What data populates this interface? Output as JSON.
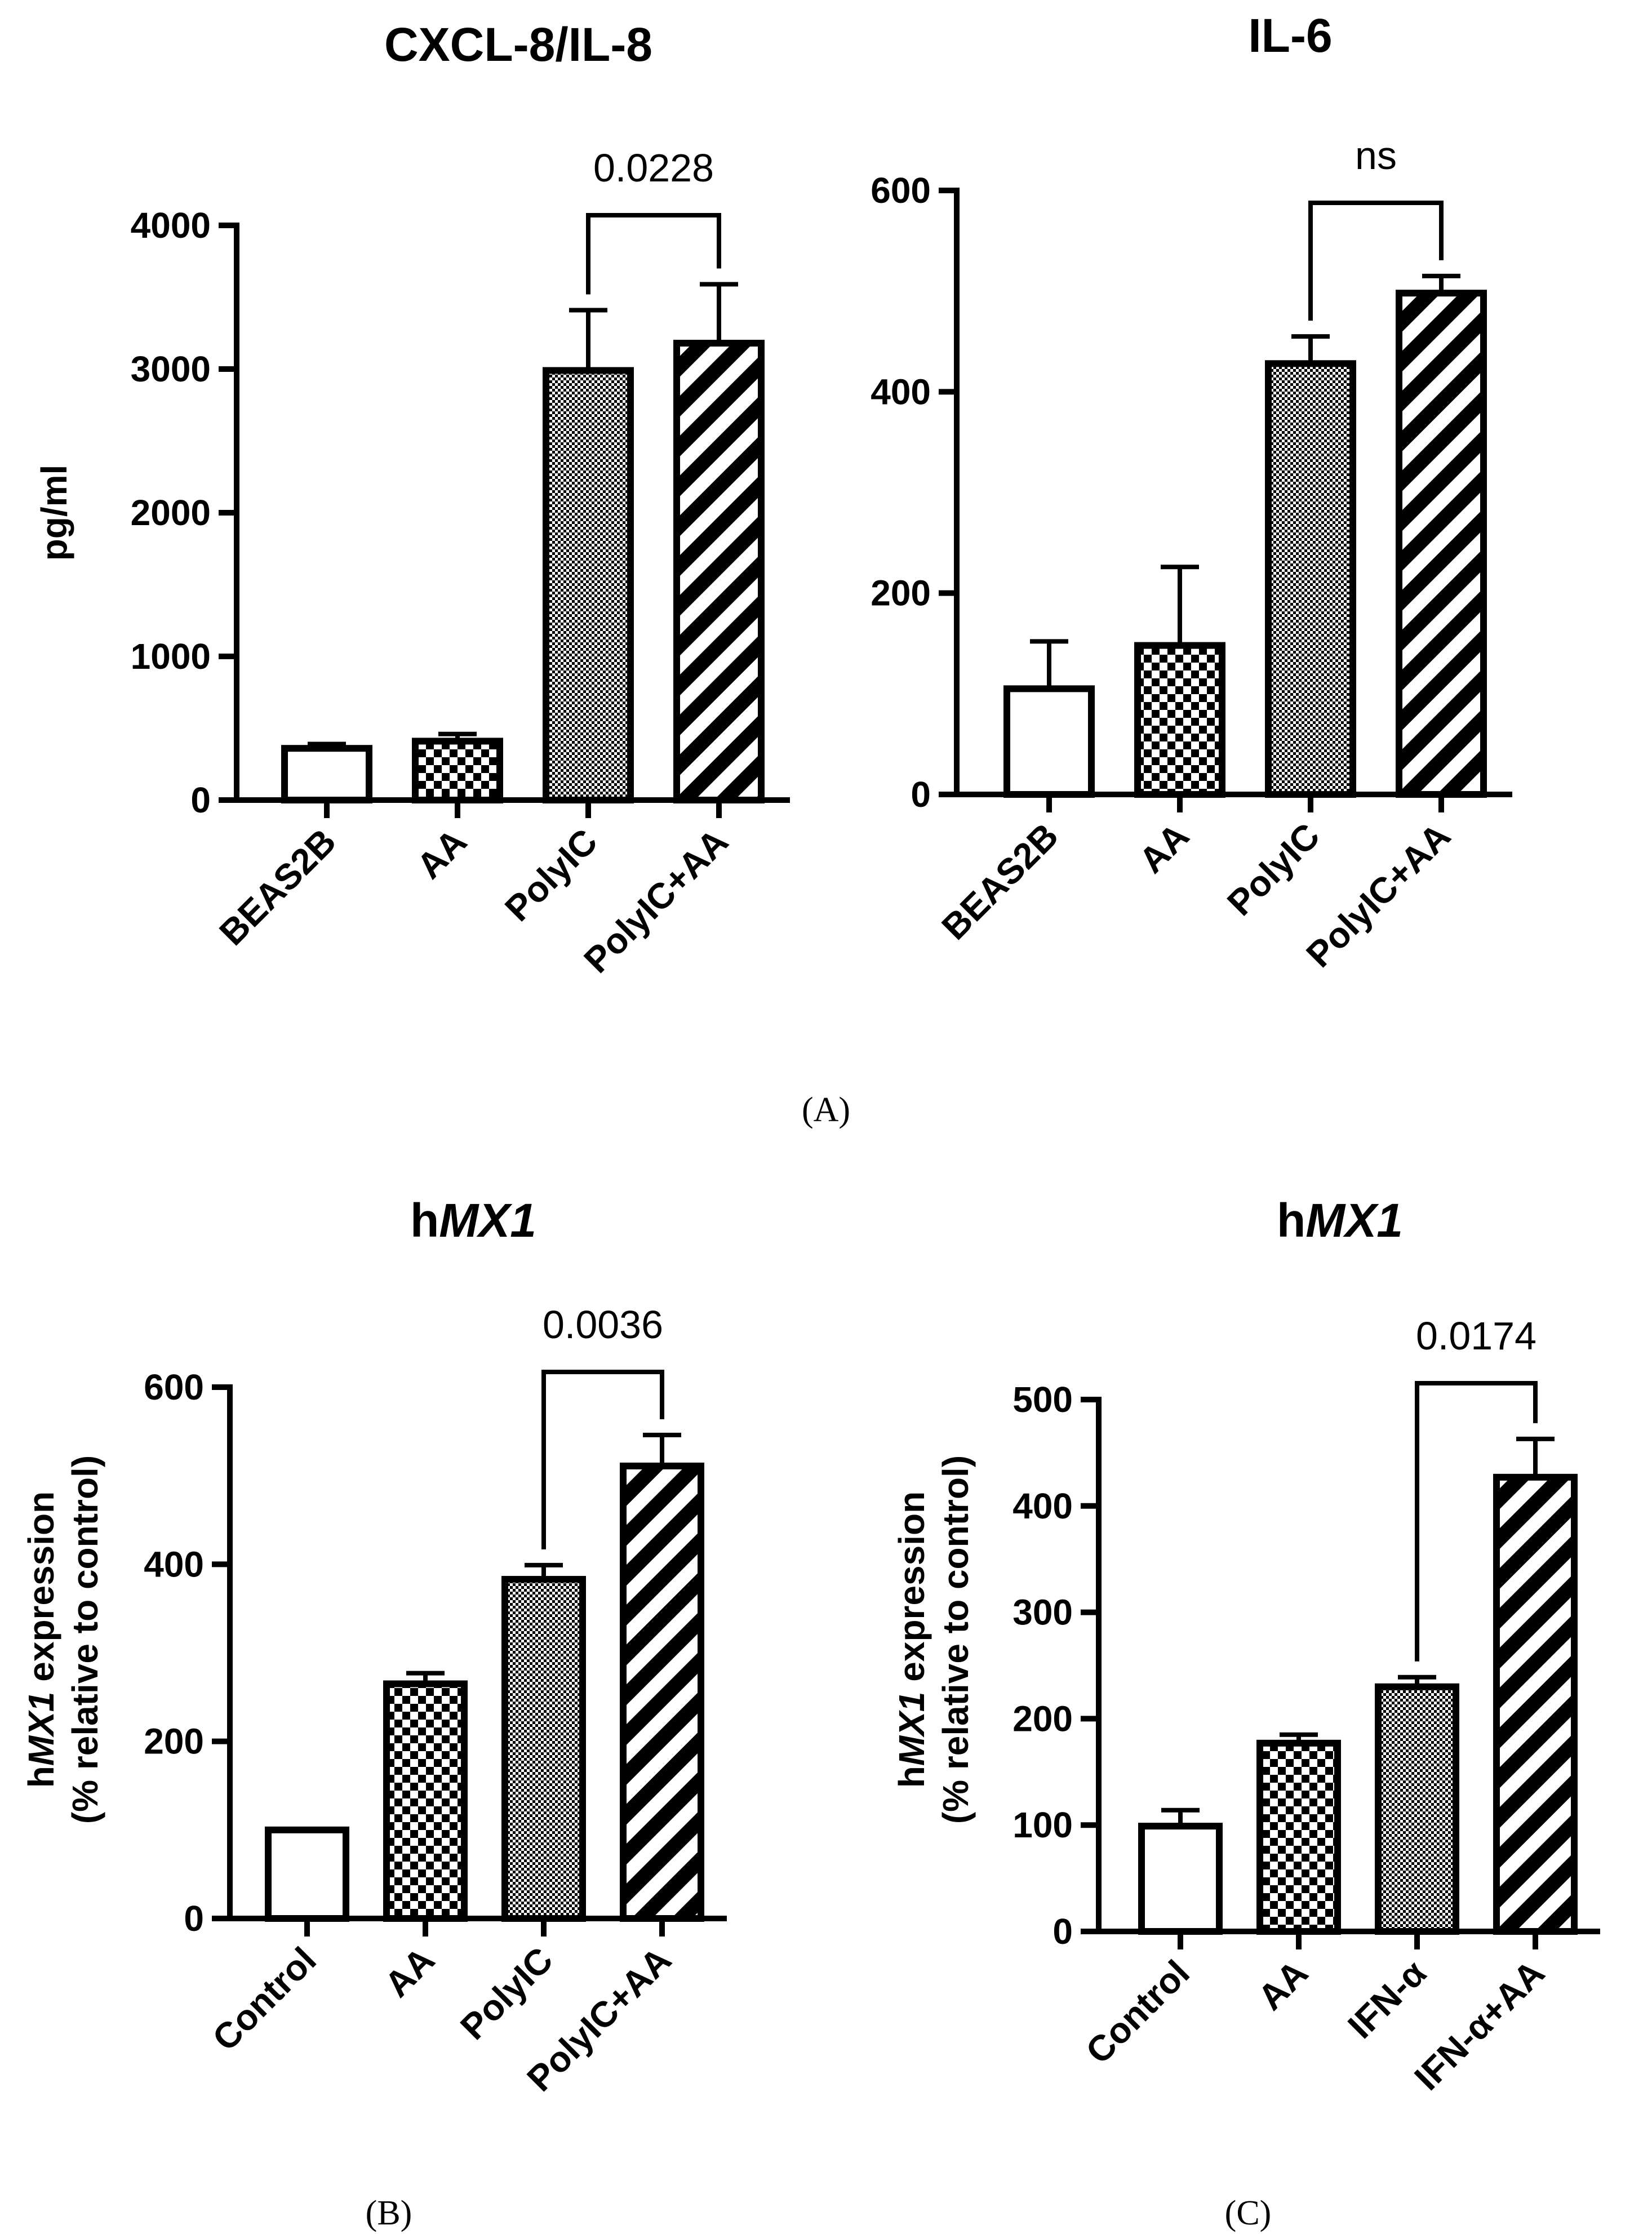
{
  "figure": {
    "panel_labels": {
      "A": "(A)",
      "B": "(B)",
      "C": "(C)"
    }
  },
  "chart_data": [
    {
      "id": "cxcl8",
      "type": "bar",
      "title": "CXCL-8/IL-8",
      "title_italic": "",
      "title_prefix": "",
      "ylabel": "pg/ml",
      "ylabel_line1_prefix": "",
      "ylabel_line1_italic": "",
      "ylabel_line1_suffix": "",
      "ylabel_line2": "",
      "ylim": [
        0,
        4000
      ],
      "yticks": [
        0,
        1000,
        2000,
        3000,
        4000
      ],
      "categories": [
        "BEAS2B",
        "AA",
        "PolyIC",
        "PolyIC+AA"
      ],
      "values": [
        360,
        410,
        2990,
        3180
      ],
      "errors": [
        30,
        50,
        420,
        410
      ],
      "patterns": [
        "none",
        "checker",
        "dots",
        "stripes"
      ],
      "comparison": {
        "from": 2,
        "to": 3,
        "label": "0.0228"
      }
    },
    {
      "id": "il6",
      "type": "bar",
      "title": "IL-6",
      "title_italic": "",
      "title_prefix": "",
      "ylabel": "",
      "ylabel_line1_prefix": "",
      "ylabel_line1_italic": "",
      "ylabel_line1_suffix": "",
      "ylabel_line2": "",
      "ylim": [
        0,
        600
      ],
      "yticks": [
        0,
        200,
        400,
        600
      ],
      "categories": [
        "BEAS2B",
        "AA",
        "PolyIC",
        "PolyIC+AA"
      ],
      "values": [
        105,
        148,
        428,
        498
      ],
      "errors": [
        47,
        78,
        27,
        17
      ],
      "patterns": [
        "none",
        "checker",
        "dots",
        "stripes"
      ],
      "comparison": {
        "from": 2,
        "to": 3,
        "label": "ns"
      }
    },
    {
      "id": "mx1-polyic",
      "type": "bar",
      "title": "",
      "title_prefix": "h",
      "title_italic": "MX1",
      "ylabel": "",
      "ylabel_line1_prefix": "h",
      "ylabel_line1_italic": "MX1",
      "ylabel_line1_suffix": " expression",
      "ylabel_line2": "(% relative to control)",
      "ylim": [
        0,
        600
      ],
      "yticks": [
        0,
        200,
        400,
        600
      ],
      "categories": [
        "Control",
        "AA",
        "PolyIC",
        "PolyIC+AA"
      ],
      "values": [
        100,
        265,
        383,
        511
      ],
      "errors": [
        0,
        12,
        16,
        35
      ],
      "patterns": [
        "none",
        "checker",
        "dots",
        "stripes"
      ],
      "comparison": {
        "from": 2,
        "to": 3,
        "label": "0.0036"
      }
    },
    {
      "id": "mx1-ifn",
      "type": "bar",
      "title": "",
      "title_prefix": "h",
      "title_italic": "MX1",
      "ylabel": "",
      "ylabel_line1_prefix": "h",
      "ylabel_line1_italic": "MX1",
      "ylabel_line1_suffix": " expression",
      "ylabel_line2": "(% relative to control)",
      "ylim": [
        0,
        500
      ],
      "yticks": [
        0,
        100,
        200,
        300,
        400,
        500
      ],
      "categories": [
        "Control",
        "AA",
        "IFN-α",
        "IFN-α+AA"
      ],
      "values": [
        99,
        177,
        230,
        427
      ],
      "errors": [
        15,
        8,
        9,
        36
      ],
      "patterns": [
        "none",
        "checker",
        "dots",
        "stripes"
      ],
      "comparison": {
        "from": 2,
        "to": 3,
        "label": "0.0174"
      }
    }
  ]
}
